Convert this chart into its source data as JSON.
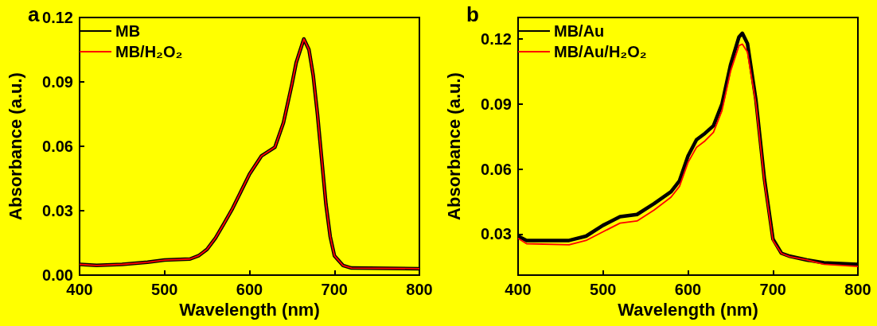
{
  "chart_data": [
    {
      "type": "line",
      "title": "a",
      "xlabel": "Wavelength (nm)",
      "ylabel": "Absorbance (a.u.)",
      "xlim": [
        400,
        800
      ],
      "xticks": [
        400,
        500,
        600,
        700,
        800
      ],
      "ylim": [
        0,
        0.12
      ],
      "yticks": [
        {
          "value": 0,
          "label": "0.00"
        },
        0.03,
        0.06,
        0.09,
        0.12
      ],
      "grid": false,
      "legend": "top left",
      "marker": "none",
      "line_style": "solid",
      "x": [
        400,
        420,
        450,
        480,
        500,
        530,
        540,
        550,
        560,
        570,
        580,
        590,
        600,
        614,
        630,
        640,
        650,
        655,
        664,
        670,
        675,
        680,
        685,
        690,
        695,
        700,
        710,
        720,
        800
      ],
      "series": [
        {
          "name": "MB",
          "color": "#000000",
          "values": [
            0.005,
            0.0045,
            0.005,
            0.006,
            0.007,
            0.0075,
            0.009,
            0.012,
            0.0173,
            0.024,
            0.031,
            0.039,
            0.047,
            0.0555,
            0.0596,
            0.071,
            0.089,
            0.099,
            0.11,
            0.105,
            0.093,
            0.075,
            0.054,
            0.033,
            0.018,
            0.009,
            0.0045,
            0.0033,
            0.003
          ]
        },
        {
          "name": "MB/H₂O₂",
          "color": "#ff0000",
          "values": [
            0.005,
            0.0045,
            0.005,
            0.006,
            0.007,
            0.0075,
            0.009,
            0.012,
            0.0173,
            0.024,
            0.031,
            0.039,
            0.047,
            0.0555,
            0.0596,
            0.071,
            0.089,
            0.099,
            0.11,
            0.105,
            0.093,
            0.075,
            0.054,
            0.033,
            0.018,
            0.009,
            0.0045,
            0.0033,
            0.003
          ]
        }
      ]
    },
    {
      "type": "line",
      "title": "b",
      "xlabel": "Wavelength (nm)",
      "ylabel": "Absorbance (a.u.)",
      "xlim": [
        400,
        800
      ],
      "xticks": [
        400,
        500,
        600,
        700,
        800
      ],
      "ylim": [
        0.011,
        0.13
      ],
      "yticks": [
        0.03,
        0.06,
        0.09,
        0.12
      ],
      "grid": false,
      "legend": "top left",
      "marker": "none",
      "line_style": "solid",
      "x": [
        400,
        410,
        460,
        480,
        500,
        520,
        540,
        560,
        580,
        590,
        600,
        610,
        620,
        630,
        640,
        650,
        660,
        664,
        670,
        680,
        690,
        700,
        710,
        720,
        740,
        760,
        800
      ],
      "series": [
        {
          "name": "MB/Au",
          "color": "#000000",
          "values": [
            0.029,
            0.027,
            0.027,
            0.029,
            0.034,
            0.038,
            0.039,
            0.044,
            0.0495,
            0.0546,
            0.066,
            0.0735,
            0.0765,
            0.08,
            0.09,
            0.108,
            0.121,
            0.1227,
            0.118,
            0.0918,
            0.0553,
            0.0277,
            0.0211,
            0.0197,
            0.018,
            0.0167,
            0.016
          ]
        },
        {
          "name": "MB/Au/H₂O₂",
          "color": "#ff0000",
          "values": [
            0.028,
            0.0255,
            0.025,
            0.027,
            0.031,
            0.035,
            0.036,
            0.041,
            0.047,
            0.052,
            0.063,
            0.07,
            0.073,
            0.077,
            0.087,
            0.105,
            0.117,
            0.1177,
            0.114,
            0.09,
            0.054,
            0.027,
            0.021,
            0.0195,
            0.018,
            0.016,
            0.015
          ]
        }
      ]
    }
  ]
}
